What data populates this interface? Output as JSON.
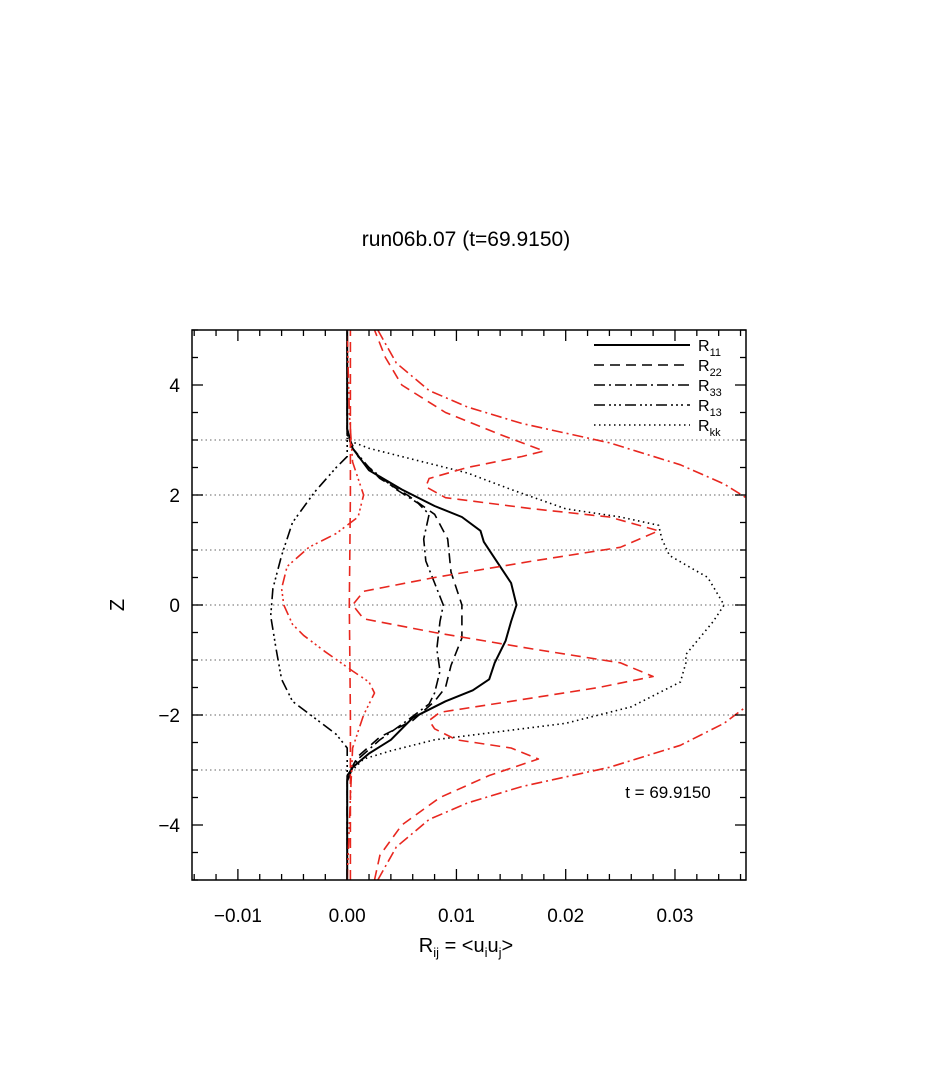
{
  "chart_data": {
    "type": "line",
    "title": "run06b.07 (t=69.9150)",
    "xlabel": {
      "main": "R",
      "sub": "ij",
      "rest": " = <u",
      "sub2": "i",
      "mid": "u",
      "sub3": "j",
      "end": ">"
    },
    "ylabel": "Z",
    "xlim": [
      -0.0142,
      0.0365
    ],
    "ylim": [
      -5,
      5
    ],
    "xticks": [
      -0.01,
      0.0,
      0.01,
      0.02,
      0.03
    ],
    "xticklabels": [
      "−0.01",
      "0.00",
      "0.01",
      "0.02",
      "0.03"
    ],
    "yticks": [
      -4,
      -2,
      0,
      2,
      4
    ],
    "yticklabels": [
      "−4",
      "−2",
      "0",
      "2",
      "4"
    ],
    "grid": "horizontal dotted lines at z = -3, -2, -1, 0, 1, 2, 3",
    "hlines": [
      -3,
      -2,
      -1,
      0,
      1,
      2,
      3
    ],
    "annotation": "t = 69.9150",
    "legend_position": "top-right",
    "legend": [
      {
        "main": "R",
        "sub": "11",
        "style": "solid"
      },
      {
        "main": "R",
        "sub": "22",
        "style": "dashed"
      },
      {
        "main": "R",
        "sub": "33",
        "style": "dashdot"
      },
      {
        "main": "R",
        "sub": "13",
        "style": "dashdotdotdot"
      },
      {
        "main": "R",
        "sub": "kk",
        "style": "dotted"
      }
    ],
    "series": [
      {
        "style": "solid",
        "color": "#000000",
        "points": [
          [
            0,
            -5
          ],
          [
            0,
            -3.2
          ],
          [
            0.0005,
            -2.95
          ],
          [
            0.002,
            -2.7
          ],
          [
            0.004,
            -2.45
          ],
          [
            0.006,
            -2.05
          ],
          [
            0.009,
            -1.75
          ],
          [
            0.0115,
            -1.55
          ],
          [
            0.013,
            -1.35
          ],
          [
            0.0135,
            -1.05
          ],
          [
            0.0145,
            -0.65
          ],
          [
            0.015,
            -0.3
          ],
          [
            0.0155,
            0
          ],
          [
            0.015,
            0.4
          ],
          [
            0.0135,
            0.85
          ],
          [
            0.0125,
            1.15
          ],
          [
            0.0122,
            1.35
          ],
          [
            0.0105,
            1.6
          ],
          [
            0.008,
            1.8
          ],
          [
            0.005,
            2.1
          ],
          [
            0.002,
            2.45
          ],
          [
            0.0005,
            2.85
          ],
          [
            0,
            3.2
          ],
          [
            0,
            5
          ]
        ]
      },
      {
        "style": "dashed",
        "color": "#000000",
        "points": [
          [
            0,
            -5
          ],
          [
            0,
            -3.1
          ],
          [
            0.001,
            -2.75
          ],
          [
            0.003,
            -2.4
          ],
          [
            0.006,
            -2.1
          ],
          [
            0.008,
            -1.75
          ],
          [
            0.009,
            -1.5
          ],
          [
            0.0095,
            -1.1
          ],
          [
            0.0105,
            -0.6
          ],
          [
            0.0105,
            0
          ],
          [
            0.0095,
            0.6
          ],
          [
            0.0092,
            1.2
          ],
          [
            0.008,
            1.65
          ],
          [
            0.0055,
            2.0
          ],
          [
            0.003,
            2.3
          ],
          [
            0.001,
            2.7
          ],
          [
            0,
            3.1
          ],
          [
            0,
            5
          ]
        ]
      },
      {
        "style": "dashdot",
        "color": "#000000",
        "points": [
          [
            0,
            -5
          ],
          [
            0,
            -3.1
          ],
          [
            0.001,
            -2.8
          ],
          [
            0.003,
            -2.45
          ],
          [
            0.0055,
            -2.1
          ],
          [
            0.0075,
            -1.8
          ],
          [
            0.008,
            -1.6
          ],
          [
            0.0085,
            -1.2
          ],
          [
            0.0082,
            -0.8
          ],
          [
            0.0085,
            -0.3
          ],
          [
            0.0088,
            0
          ],
          [
            0.008,
            0.4
          ],
          [
            0.0072,
            0.8
          ],
          [
            0.007,
            1.2
          ],
          [
            0.0075,
            1.65
          ],
          [
            0.0065,
            1.85
          ],
          [
            0.0045,
            2.1
          ],
          [
            0.002,
            2.5
          ],
          [
            0.0005,
            2.85
          ],
          [
            0,
            3.1
          ],
          [
            0,
            5
          ]
        ]
      },
      {
        "style": "dashdotdotdot",
        "color": "#000000",
        "points": [
          [
            0,
            -5
          ],
          [
            0,
            -2.6
          ],
          [
            -0.001,
            -2.35
          ],
          [
            -0.003,
            -2.05
          ],
          [
            -0.005,
            -1.75
          ],
          [
            -0.006,
            -1.35
          ],
          [
            -0.0065,
            -0.8
          ],
          [
            -0.007,
            -0.2
          ],
          [
            -0.0068,
            0.3
          ],
          [
            -0.006,
            0.9
          ],
          [
            -0.005,
            1.5
          ],
          [
            -0.003,
            2.05
          ],
          [
            -0.001,
            2.5
          ],
          [
            0,
            2.7
          ],
          [
            0,
            5
          ]
        ]
      },
      {
        "style": "dotted",
        "color": "#000000",
        "points": [
          [
            0,
            -5
          ],
          [
            0,
            -3.1
          ],
          [
            0.0015,
            -2.8
          ],
          [
            0.004,
            -2.65
          ],
          [
            0.008,
            -2.45
          ],
          [
            0.012,
            -2.35
          ],
          [
            0.02,
            -2.15
          ],
          [
            0.026,
            -1.85
          ],
          [
            0.0305,
            -1.4
          ],
          [
            0.031,
            -1.05
          ],
          [
            0.031,
            -0.9
          ],
          [
            0.0335,
            -0.3
          ],
          [
            0.0345,
            0
          ],
          [
            0.033,
            0.5
          ],
          [
            0.0295,
            0.9
          ],
          [
            0.0288,
            1.2
          ],
          [
            0.0285,
            1.45
          ],
          [
            0.025,
            1.6
          ],
          [
            0.02,
            1.75
          ],
          [
            0.015,
            2.1
          ],
          [
            0.011,
            2.4
          ],
          [
            0.006,
            2.65
          ],
          [
            0.002,
            2.85
          ],
          [
            0,
            3.0
          ],
          [
            0,
            5
          ]
        ]
      },
      {
        "style": "dashed",
        "color": "#e8271f",
        "points": [
          [
            0.0025,
            -5
          ],
          [
            0.003,
            -4.55
          ],
          [
            0.005,
            -4.0
          ],
          [
            0.0085,
            -3.5
          ],
          [
            0.013,
            -3.1
          ],
          [
            0.0175,
            -2.8
          ],
          [
            0.015,
            -2.6
          ],
          [
            0.01,
            -2.45
          ],
          [
            0.008,
            -2.25
          ],
          [
            0.0075,
            -2.1
          ],
          [
            0.0085,
            -1.95
          ],
          [
            0.015,
            -1.75
          ],
          [
            0.023,
            -1.5
          ],
          [
            0.028,
            -1.3
          ],
          [
            0.025,
            -1.05
          ],
          [
            0.017,
            -0.8
          ],
          [
            0.008,
            -0.5
          ],
          [
            0.0015,
            -0.25
          ],
          [
            0.0005,
            0
          ],
          [
            0.0015,
            0.25
          ],
          [
            0.008,
            0.5
          ],
          [
            0.017,
            0.8
          ],
          [
            0.025,
            1.05
          ],
          [
            0.0285,
            1.35
          ],
          [
            0.024,
            1.6
          ],
          [
            0.017,
            1.75
          ],
          [
            0.009,
            1.95
          ],
          [
            0.0072,
            2.15
          ],
          [
            0.0075,
            2.3
          ],
          [
            0.011,
            2.5
          ],
          [
            0.016,
            2.7
          ],
          [
            0.018,
            2.8
          ],
          [
            0.014,
            3.1
          ],
          [
            0.009,
            3.5
          ],
          [
            0.005,
            4.0
          ],
          [
            0.0035,
            4.5
          ],
          [
            0.0025,
            5
          ]
        ]
      },
      {
        "style": "dashdot",
        "color": "#e8271f",
        "points": [
          [
            0.0028,
            -5
          ],
          [
            0.0045,
            -4.4
          ],
          [
            0.0075,
            -3.9
          ],
          [
            0.011,
            -3.6
          ],
          [
            0.016,
            -3.3
          ],
          [
            0.024,
            -2.95
          ],
          [
            0.0305,
            -2.55
          ],
          [
            0.0345,
            -2.15
          ],
          [
            0.0365,
            -1.85
          ]
        ]
      },
      {
        "style": "dashdot",
        "color": "#e8271f",
        "points": [
          [
            0.0028,
            5
          ],
          [
            0.0045,
            4.4
          ],
          [
            0.0075,
            3.9
          ],
          [
            0.011,
            3.6
          ],
          [
            0.016,
            3.3
          ],
          [
            0.024,
            2.95
          ],
          [
            0.0305,
            2.55
          ],
          [
            0.0345,
            2.2
          ],
          [
            0.0365,
            1.95
          ]
        ]
      },
      {
        "style": "dashdotdotdot",
        "color": "#e8271f",
        "points": [
          [
            0,
            -5
          ],
          [
            0.0003,
            -3.5
          ],
          [
            0.0005,
            -2.6
          ],
          [
            0.0015,
            -2.0
          ],
          [
            0.0025,
            -1.6
          ],
          [
            0.002,
            -1.4
          ],
          [
            0.0005,
            -1.2
          ],
          [
            -0.002,
            -0.85
          ],
          [
            -0.004,
            -0.55
          ],
          [
            -0.005,
            -0.35
          ],
          [
            -0.0058,
            0
          ],
          [
            -0.006,
            0.3
          ],
          [
            -0.0055,
            0.7
          ],
          [
            -0.0035,
            1.05
          ],
          [
            -0.001,
            1.3
          ],
          [
            0.001,
            1.6
          ],
          [
            0.0015,
            2.0
          ],
          [
            0.001,
            2.3
          ],
          [
            0.0005,
            2.6
          ],
          [
            0.0002,
            3.5
          ],
          [
            0,
            5
          ]
        ]
      },
      {
        "style": "dashed",
        "color": "#e8271f",
        "points": [
          [
            0.0003,
            -5
          ],
          [
            0.0003,
            -2
          ],
          [
            0.0002,
            0
          ],
          [
            0.0003,
            2
          ],
          [
            0.0003,
            5
          ]
        ]
      }
    ]
  }
}
